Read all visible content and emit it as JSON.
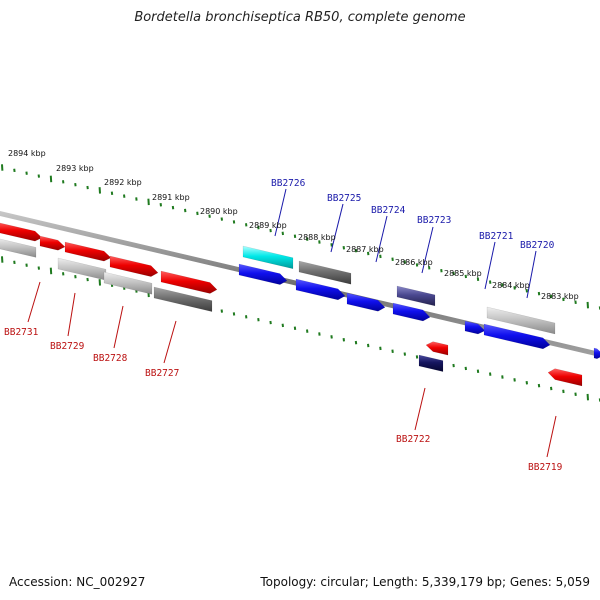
{
  "title": "Bordetella bronchiseptica RB50, complete genome",
  "footer": {
    "accession": "Accession: NC_002927",
    "info": "Topology: circular; Length: 5,339,179 bp; Genes: 5,059"
  },
  "colors": {
    "label_top": "#1a1aaa",
    "label_bottom": "#bb1111",
    "tick": "#1f7a1f",
    "backbone": "#777777"
  },
  "kbp_labels": [
    "2894 kbp",
    "2893 kbp",
    "2892 kbp",
    "2891 kbp",
    "2890 kbp",
    "2889 kbp",
    "2888 kbp",
    "2887 kbp",
    "2886 kbp",
    "2885 kbp",
    "2884 kbp",
    "2883 kbp"
  ],
  "gene_labels_top": [
    "BB2726",
    "BB2725",
    "BB2724",
    "BB2723",
    "BB2721",
    "BB2720"
  ],
  "gene_labels_bottom": [
    "BB2731",
    "BB2729",
    "BB2728",
    "BB2727",
    "BB2722",
    "BB2719"
  ]
}
